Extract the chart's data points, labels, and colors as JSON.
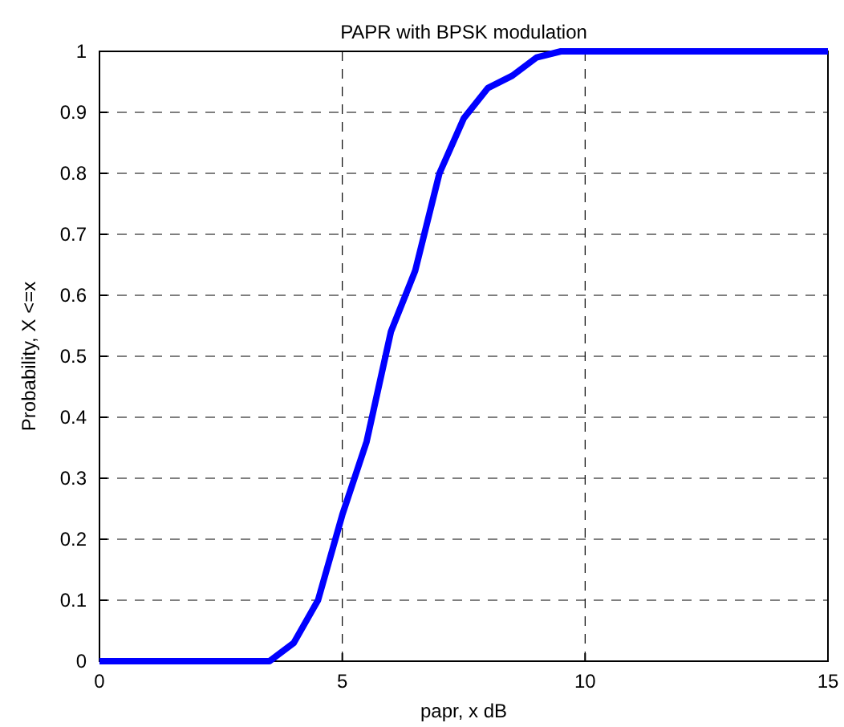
{
  "chart_data": {
    "type": "line",
    "title": "PAPR with BPSK modulation",
    "xlabel": "papr, x dB",
    "ylabel": "Probability, X <=x",
    "x": [
      0,
      0.5,
      1,
      1.5,
      2,
      2.5,
      3,
      3.5,
      4,
      4.5,
      5,
      5.5,
      6,
      6.5,
      7,
      7.5,
      8,
      8.5,
      9,
      9.5,
      10,
      10.5,
      11,
      11.5,
      12,
      12.5,
      13,
      13.5,
      14,
      14.5,
      15
    ],
    "series": [
      {
        "color": "#0000ff",
        "values": [
          0,
          0,
          0,
          0,
          0,
          0,
          0,
          0,
          0.03,
          0.1,
          0.24,
          0.36,
          0.54,
          0.64,
          0.8,
          0.89,
          0.94,
          0.96,
          0.99,
          1,
          1,
          1,
          1,
          1,
          1,
          1,
          1,
          1,
          1,
          1,
          1
        ]
      }
    ],
    "xlim": [
      0,
      15
    ],
    "xticks": [
      0,
      5,
      10,
      15
    ],
    "ylim": [
      0,
      1
    ],
    "yticks": [
      0,
      0.1,
      0.2,
      0.3,
      0.4,
      0.5,
      0.6,
      0.7,
      0.8,
      0.9,
      1
    ],
    "grid": true,
    "line_style": "solid",
    "marker": "none"
  }
}
